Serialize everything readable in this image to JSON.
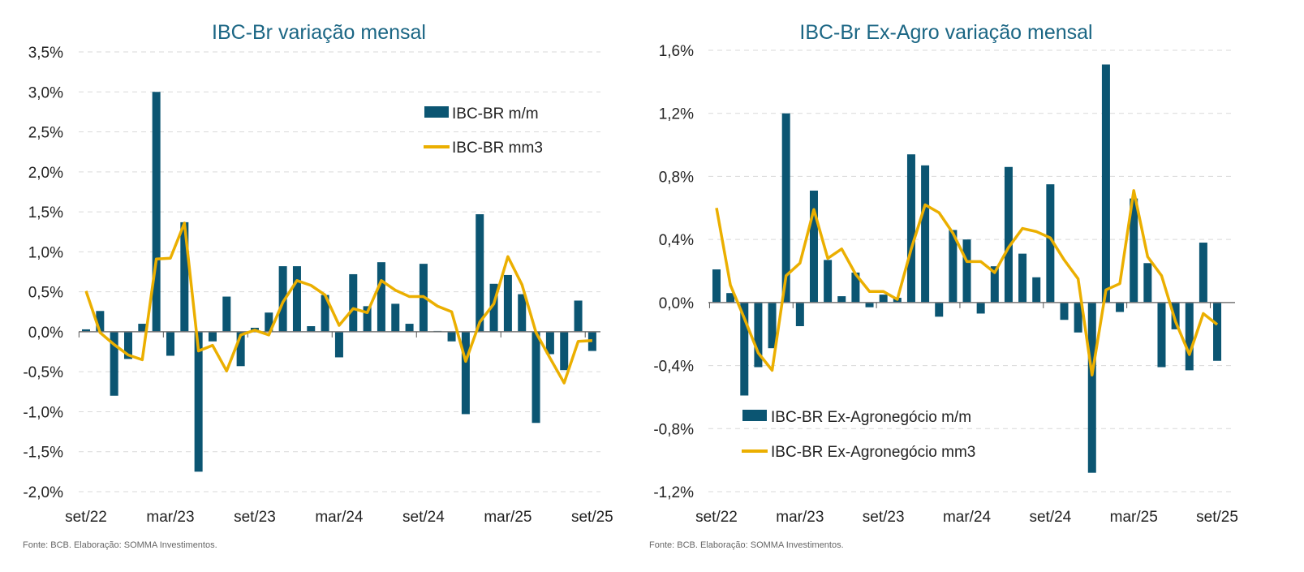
{
  "colors": {
    "bar": "#0b5572",
    "line": "#ebaf00",
    "title": "#1b6684"
  },
  "chart_data": [
    {
      "type": "bar+line",
      "title": "IBC-Br variação mensal",
      "xlabel": "",
      "ylabel": "",
      "ylim": [
        -2.0,
        3.5
      ],
      "yticks": [
        "-2,0%",
        "-1,5%",
        "-1,0%",
        "-0,5%",
        "0,0%",
        "0,5%",
        "1,0%",
        "1,5%",
        "2,0%",
        "2,5%",
        "3,0%",
        "3,5%"
      ],
      "xtick_labels": [
        "set/22",
        "mar/23",
        "set/23",
        "mar/24",
        "set/24",
        "mar/25",
        "set/25"
      ],
      "grid": true,
      "legend_position": "top-right",
      "categories": [
        "set/22",
        "out/22",
        "nov/22",
        "dez/22",
        "jan/23",
        "fev/23",
        "mar/23",
        "abr/23",
        "mai/23",
        "jun/23",
        "jul/23",
        "ago/23",
        "set/23",
        "out/23",
        "nov/23",
        "dez/23",
        "jan/24",
        "fev/24",
        "mar/24",
        "abr/24",
        "mai/24",
        "jun/24",
        "jul/24",
        "ago/24",
        "set/24",
        "out/24",
        "nov/24",
        "dez/24",
        "jan/25",
        "fev/25",
        "mar/25",
        "abr/25",
        "mai/25",
        "jun/25",
        "jul/25",
        "ago/25",
        "set/25"
      ],
      "series": [
        {
          "name": "IBC-BR m/m",
          "kind": "bar",
          "values": [
            0.03,
            0.26,
            -0.8,
            -0.34,
            0.1,
            3.0,
            -0.3,
            1.37,
            -1.75,
            -0.12,
            0.44,
            -0.43,
            0.05,
            0.24,
            0.82,
            0.82,
            0.07,
            0.46,
            -0.32,
            0.72,
            0.32,
            0.87,
            0.35,
            0.1,
            0.85,
            0.01,
            -0.12,
            -1.03,
            1.47,
            0.6,
            0.71,
            0.47,
            -1.14,
            -0.28,
            -0.48,
            0.39,
            -0.24
          ]
        },
        {
          "name": "IBC-BR mm3",
          "kind": "line",
          "values": [
            0.51,
            -0.01,
            -0.16,
            -0.29,
            -0.35,
            0.91,
            0.92,
            1.36,
            -0.24,
            -0.17,
            -0.49,
            -0.04,
            0.02,
            -0.04,
            0.37,
            0.64,
            0.58,
            0.46,
            0.08,
            0.29,
            0.24,
            0.64,
            0.52,
            0.44,
            0.44,
            0.32,
            0.25,
            -0.37,
            0.12,
            0.35,
            0.94,
            0.59,
            -0.01,
            -0.33,
            -0.64,
            -0.12,
            -0.11
          ]
        }
      ],
      "source": "Fonte: BCB. Elaboração: SOMMA Investimentos."
    },
    {
      "type": "bar+line",
      "title": "IBC-Br Ex-Agro variação mensal",
      "xlabel": "",
      "ylabel": "",
      "ylim": [
        -1.2,
        1.6
      ],
      "yticks": [
        "-1,2%",
        "-0,8%",
        "-0,4%",
        "0,0%",
        "0,4%",
        "0,8%",
        "1,2%",
        "1,6%"
      ],
      "xtick_labels": [
        "set/22",
        "mar/23",
        "set/23",
        "mar/24",
        "set/24",
        "mar/25",
        "set/25"
      ],
      "grid": true,
      "legend_position": "bottom-left",
      "categories": [
        "set/22",
        "out/22",
        "nov/22",
        "dez/22",
        "jan/23",
        "fev/23",
        "mar/23",
        "abr/23",
        "mai/23",
        "jun/23",
        "jul/23",
        "ago/23",
        "set/23",
        "out/23",
        "nov/23",
        "dez/23",
        "jan/24",
        "fev/24",
        "mar/24",
        "abr/24",
        "mai/24",
        "jun/24",
        "jul/24",
        "ago/24",
        "set/24",
        "out/24",
        "nov/24",
        "dez/24",
        "jan/25",
        "fev/25",
        "mar/25",
        "abr/25",
        "mai/25",
        "jun/25",
        "jul/25",
        "ago/25",
        "set/25"
      ],
      "series": [
        {
          "name": "IBC-BR Ex-Agronegócio m/m",
          "kind": "bar",
          "values": [
            0.21,
            0.06,
            -0.59,
            -0.41,
            -0.29,
            1.2,
            -0.15,
            0.71,
            0.27,
            0.04,
            0.19,
            -0.03,
            0.05,
            0.03,
            0.94,
            0.87,
            -0.09,
            0.46,
            0.4,
            -0.07,
            0.23,
            0.86,
            0.31,
            0.16,
            0.75,
            -0.11,
            -0.19,
            -1.08,
            1.51,
            -0.06,
            0.66,
            0.25,
            -0.41,
            -0.17,
            -0.43,
            0.38,
            -0.37
          ]
        },
        {
          "name": "IBC-BR Ex-Agronegócio mm3",
          "kind": "line",
          "values": [
            0.6,
            0.11,
            -0.1,
            -0.32,
            -0.43,
            0.17,
            0.25,
            0.59,
            0.28,
            0.34,
            0.18,
            0.07,
            0.07,
            0.02,
            0.34,
            0.62,
            0.57,
            0.44,
            0.26,
            0.26,
            0.19,
            0.35,
            0.47,
            0.45,
            0.41,
            0.27,
            0.15,
            -0.46,
            0.08,
            0.12,
            0.71,
            0.29,
            0.17,
            -0.12,
            -0.33,
            -0.07,
            -0.14
          ]
        }
      ],
      "source": "Fonte: BCB. Elaboração: SOMMA Investimentos."
    }
  ]
}
